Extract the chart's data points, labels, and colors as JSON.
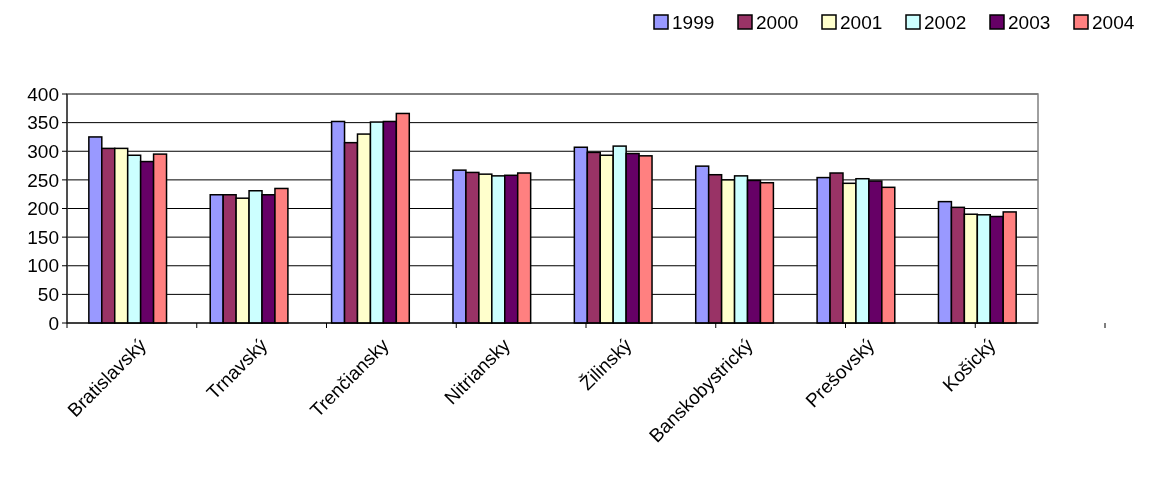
{
  "chart_data": {
    "type": "bar",
    "categories": [
      "Bratislavský",
      "Trnavský",
      "Trenčiansky",
      "Nitriansky",
      "Žilinský",
      "Banskobystrický",
      "Prešovský",
      "Košický"
    ],
    "series": [
      {
        "name": "1999",
        "color": "#9999ff",
        "values": [
          325,
          224,
          352,
          267,
          307,
          274,
          254,
          212
        ]
      },
      {
        "name": "2000",
        "color": "#993366",
        "values": [
          305,
          224,
          315,
          263,
          298,
          259,
          262,
          202
        ]
      },
      {
        "name": "2001",
        "color": "#ffffcc",
        "values": [
          305,
          218,
          330,
          260,
          293,
          250,
          244,
          190
        ]
      },
      {
        "name": "2002",
        "color": "#ccffff",
        "values": [
          293,
          231,
          351,
          257,
          309,
          257,
          252,
          189
        ]
      },
      {
        "name": "2003",
        "color": "#660066",
        "values": [
          282,
          224,
          352,
          258,
          296,
          249,
          248,
          186
        ]
      },
      {
        "name": "2004",
        "color": "#ff8080",
        "values": [
          295,
          235,
          366,
          262,
          292,
          245,
          237,
          194
        ]
      }
    ],
    "ylim": [
      0,
      400
    ],
    "yticks": [
      0,
      50,
      100,
      150,
      200,
      250,
      300,
      350,
      400
    ],
    "grid": "y",
    "legend": "top right"
  }
}
